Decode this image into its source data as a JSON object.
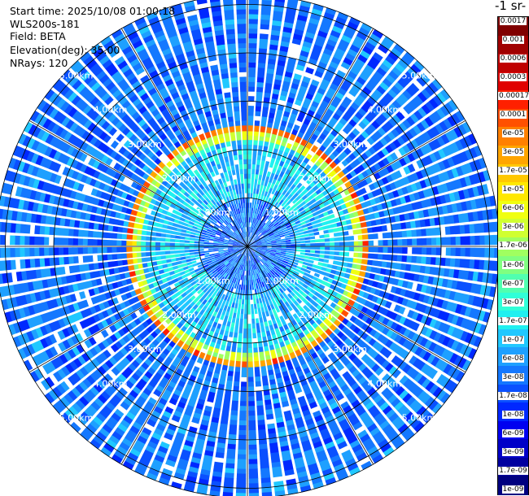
{
  "info": {
    "start_time": "Start time: 2025/10/08 01:00:18",
    "instrument": "WLS200s-181",
    "field": "Field: BETA",
    "elevation": "Elevation(deg): 35.00",
    "nrays": "NRays: 120"
  },
  "colorbar": {
    "title": "-1 sr-",
    "labels": [
      "0.0017",
      "0.001",
      "0.0006",
      "0.0003",
      "0.00017",
      "0.0001",
      "6e-05",
      "3e-05",
      "1.7e-05",
      "1e-05",
      "6e-06",
      "3e-06",
      "1.7e-06",
      "1e-06",
      "6e-07",
      "3e-07",
      "1.7e-07",
      "1e-07",
      "6e-08",
      "3e-08",
      "1.7e-08",
      "1e-08",
      "6e-09",
      "3e-09",
      "1.7e-09",
      "1e-09"
    ],
    "colors": [
      "#800000",
      "#a00000",
      "#c00000",
      "#e00000",
      "#ff2000",
      "#ff5000",
      "#ff8000",
      "#ffa500",
      "#ffc800",
      "#ffe800",
      "#f0ff10",
      "#d0ff30",
      "#a0ff60",
      "#80ff80",
      "#50ffb0",
      "#30ffd8",
      "#20f0f0",
      "#20c8ff",
      "#1ea0ff",
      "#1478ff",
      "#0a50ff",
      "#0028ff",
      "#0000f0",
      "#0000c8",
      "#0000a0",
      "#000080"
    ]
  },
  "chart_data": {
    "type": "heatmap",
    "projection": "polar PPI scan",
    "nrays": 120,
    "elevation_deg": 35.0,
    "range_unit": "km",
    "range_ring_labels": [
      "1.00km",
      "2.00km",
      "3.00km",
      "4.00km",
      "5.00km"
    ],
    "range_rings_km": [
      1,
      2,
      3,
      4,
      5
    ],
    "max_range_km": 5.2,
    "spoke_angles_deg": [
      0,
      30,
      60,
      90,
      120,
      150,
      180,
      210,
      240,
      270,
      300,
      330
    ],
    "field_regions": [
      {
        "range_km": [
          0.0,
          1.0
        ],
        "dominant_value": "3e-08"
      },
      {
        "range_km": [
          1.0,
          2.2
        ],
        "dominant_value": "1e-07"
      },
      {
        "range_km": [
          2.2,
          2.38
        ],
        "dominant_value": "3e-06"
      },
      {
        "range_km": [
          2.38,
          2.5
        ],
        "dominant_value": "6e-05"
      },
      {
        "range_km": [
          2.5,
          5.2
        ],
        "dominant_value": "3e-08"
      }
    ],
    "colorscale": "jet, logarithmic",
    "value_range": [
      1e-09,
      0.0017
    ]
  }
}
